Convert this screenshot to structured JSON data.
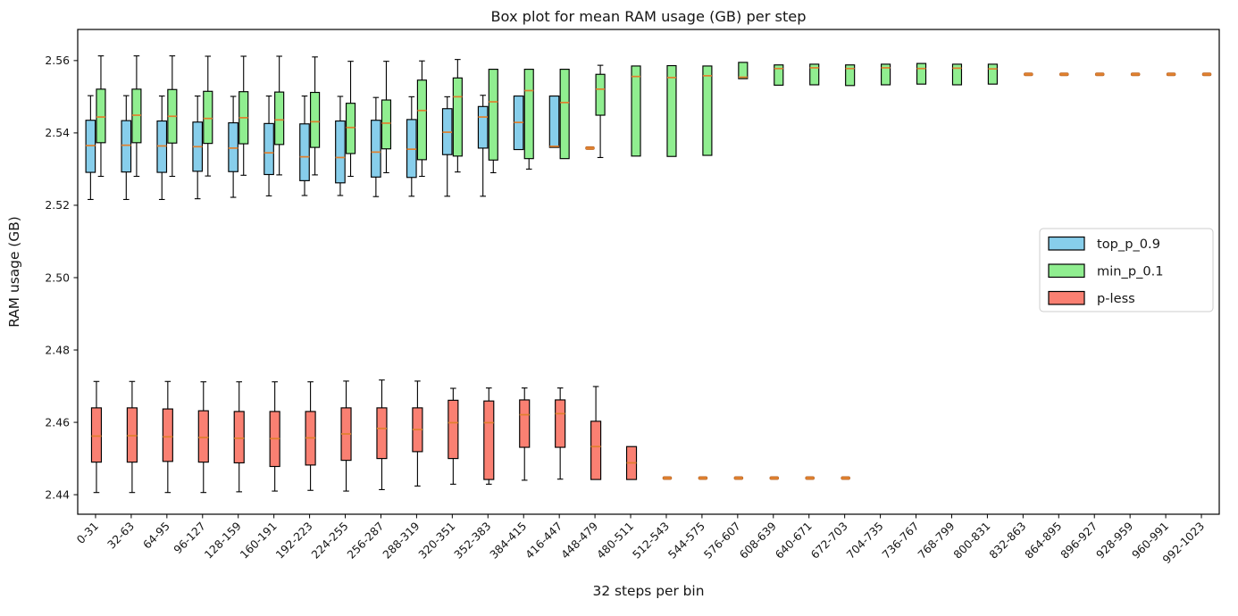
{
  "figure": {
    "title": "Box plot for mean RAM usage (GB) per step",
    "xlabel": "32 steps per bin",
    "ylabel": "RAM usage (GB)"
  },
  "legend": {
    "entries": [
      "top_p_0.9",
      "min_p_0.1",
      "p-less"
    ]
  },
  "chart_data": {
    "type": "boxplot",
    "title": "Box plot for mean RAM usage (GB) per step",
    "xlabel": "32 steps per bin",
    "ylabel": "RAM usage (GB)",
    "grid": false,
    "legend_position": "center-right",
    "ylim": [
      2.4346,
      2.5686
    ],
    "ytick_values": [
      2.44,
      2.46,
      2.48,
      2.5,
      2.52,
      2.54,
      2.56
    ],
    "ytick_labels": [
      "2.44",
      "2.46",
      "2.48",
      "2.50",
      "2.52",
      "2.54",
      "2.56"
    ],
    "categories": [
      "0-31",
      "32-63",
      "64-95",
      "96-127",
      "128-159",
      "160-191",
      "192-223",
      "224-255",
      "256-287",
      "288-319",
      "320-351",
      "352-383",
      "384-415",
      "416-447",
      "448-479",
      "480-511",
      "512-543",
      "544-575",
      "576-607",
      "608-639",
      "640-671",
      "672-703",
      "704-735",
      "736-767",
      "768-799",
      "800-831",
      "832-863",
      "864-895",
      "896-927",
      "928-959",
      "960-991",
      "992-1023"
    ],
    "median_color": "#e0802e",
    "box_value_format": "[whisker_low, q1, median, q3, whisker_high]; bare number = collapsed box (median dash only); null = no data",
    "series": [
      {
        "name": "top_p_0.9",
        "color": "#87CEEB",
        "boxes": [
          [
            2.5216,
            2.5291,
            2.5365,
            2.5435,
            2.5503
          ],
          [
            2.5216,
            2.5292,
            2.5366,
            2.5434,
            2.5503
          ],
          [
            2.5216,
            2.5291,
            2.5364,
            2.5433,
            2.5502
          ],
          [
            2.5218,
            2.5294,
            2.5362,
            2.543,
            2.5502
          ],
          [
            2.5222,
            2.5293,
            2.5358,
            2.5428,
            2.5501
          ],
          [
            2.5226,
            2.5285,
            2.5345,
            2.5426,
            2.5502
          ],
          [
            2.5227,
            2.5268,
            2.5334,
            2.5425,
            2.5502
          ],
          [
            2.5227,
            2.5262,
            2.5332,
            2.5433,
            2.5501
          ],
          [
            2.5224,
            2.5278,
            2.5347,
            2.5435,
            2.5498
          ],
          [
            2.5225,
            2.5277,
            2.5355,
            2.5437,
            2.55
          ],
          [
            2.5225,
            2.534,
            2.5402,
            2.5467,
            2.55
          ],
          [
            2.5225,
            2.5358,
            2.5444,
            2.5473,
            2.5504
          ],
          [
            null,
            2.5354,
            2.5429,
            2.5502,
            null
          ],
          [
            null,
            2.536,
            2.5363,
            2.5502,
            null
          ],
          2.5358,
          null,
          null,
          null,
          null,
          null,
          null,
          null,
          null,
          null,
          null,
          null,
          null,
          null,
          null,
          null,
          null,
          null
        ]
      },
      {
        "name": "min_p_0.1",
        "color": "#90EE90",
        "boxes": [
          [
            2.528,
            2.5373,
            2.5444,
            2.5521,
            2.5613
          ],
          [
            2.528,
            2.5373,
            2.5449,
            2.5521,
            2.5613
          ],
          [
            2.528,
            2.5372,
            2.5446,
            2.552,
            2.5613
          ],
          [
            2.5281,
            2.5371,
            2.544,
            2.5515,
            2.5612
          ],
          [
            2.5283,
            2.537,
            2.5442,
            2.5514,
            2.5612
          ],
          [
            2.5284,
            2.5368,
            2.5436,
            2.5513,
            2.5612
          ],
          [
            2.5284,
            2.536,
            2.5431,
            2.5512,
            2.561
          ],
          [
            2.528,
            2.5343,
            2.5415,
            2.5482,
            2.5598
          ],
          [
            2.529,
            2.5356,
            2.5427,
            2.5491,
            2.5598
          ],
          [
            2.528,
            2.5326,
            2.5462,
            2.5546,
            2.5599
          ],
          [
            2.5292,
            2.5336,
            2.55,
            2.5552,
            2.5603
          ],
          [
            2.529,
            2.5325,
            2.5486,
            2.5576,
            null
          ],
          [
            2.53,
            2.5329,
            2.5517,
            2.5576,
            null
          ],
          [
            null,
            2.5329,
            2.5484,
            2.5576,
            null
          ],
          [
            2.5332,
            2.5449,
            2.5521,
            2.5562,
            2.5587
          ],
          [
            null,
            2.5336,
            2.5556,
            2.5585,
            null
          ],
          [
            null,
            2.5335,
            2.5553,
            2.5586,
            null
          ],
          [
            null,
            2.5338,
            2.5558,
            2.5585,
            null
          ],
          [
            null,
            2.555,
            2.5554,
            2.5595,
            null
          ],
          [
            null,
            2.5532,
            2.5578,
            2.5588,
            null
          ],
          [
            null,
            2.5533,
            2.558,
            2.559,
            null
          ],
          [
            null,
            2.5531,
            2.5578,
            2.5588,
            null
          ],
          [
            null,
            2.5533,
            2.558,
            2.559,
            null
          ],
          [
            null,
            2.5535,
            2.5578,
            2.5592,
            null
          ],
          [
            null,
            2.5533,
            2.5579,
            2.559,
            null
          ],
          [
            null,
            2.5535,
            2.5577,
            2.559,
            null
          ],
          2.5562,
          2.5562,
          2.5562,
          2.5562,
          2.5562,
          2.5562
        ]
      },
      {
        "name": "p-less",
        "color": "#FA8072",
        "boxes": [
          [
            2.4406,
            2.449,
            2.4562,
            2.464,
            2.4713
          ],
          [
            2.4406,
            2.449,
            2.4563,
            2.464,
            2.4713
          ],
          [
            2.4406,
            2.4492,
            2.456,
            2.4637,
            2.4713
          ],
          [
            2.4406,
            2.449,
            2.4558,
            2.4632,
            2.4712
          ],
          [
            2.4408,
            2.4488,
            2.4556,
            2.463,
            2.4712
          ],
          [
            2.441,
            2.4478,
            2.4555,
            2.463,
            2.4712
          ],
          [
            2.4412,
            2.4482,
            2.4557,
            2.463,
            2.4712
          ],
          [
            2.441,
            2.4495,
            2.4568,
            2.464,
            2.4714
          ],
          [
            2.4414,
            2.45,
            2.4583,
            2.464,
            2.4717
          ],
          [
            2.4424,
            2.4519,
            2.458,
            2.464,
            2.4714
          ],
          [
            2.4429,
            2.45,
            2.4599,
            2.4661,
            2.4694
          ],
          [
            2.4429,
            2.4442,
            2.4599,
            2.4659,
            2.4695
          ],
          [
            2.444,
            2.4531,
            2.4621,
            2.4662,
            2.4695
          ],
          [
            2.4443,
            2.4531,
            2.4624,
            2.4662,
            2.4695
          ],
          [
            null,
            2.4442,
            2.4533,
            2.4603,
            2.4699
          ],
          [
            null,
            2.4442,
            2.4488,
            2.4533,
            null
          ],
          2.4446,
          2.4446,
          2.4446,
          2.4446,
          2.4446,
          2.4446,
          null,
          null,
          null,
          null,
          null,
          null,
          null,
          null,
          null,
          null
        ]
      }
    ]
  }
}
